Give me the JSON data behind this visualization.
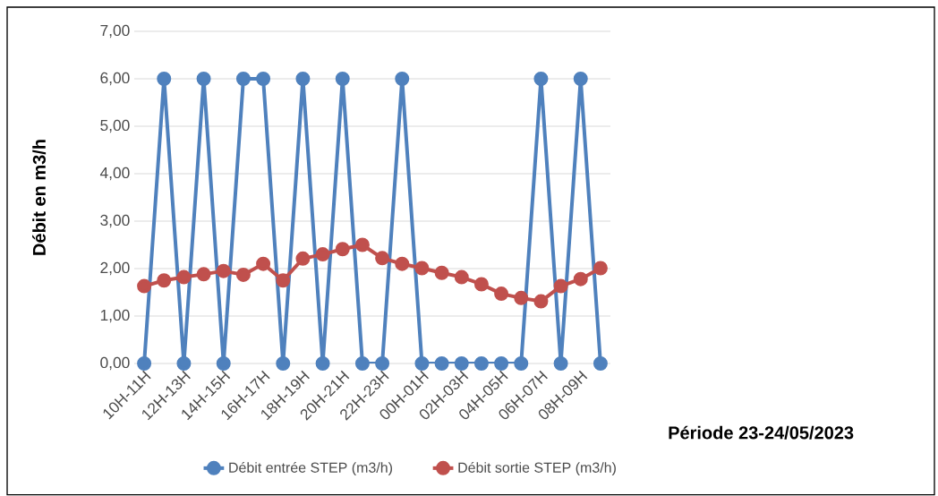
{
  "chart_data": {
    "type": "line",
    "xlabel": "Période 23-24/05/2023",
    "ylabel": "Débit en m3/h",
    "categories": [
      "10H-11H",
      null,
      "12H-13H",
      null,
      "14H-15H",
      null,
      "16H-17H",
      null,
      "18H-19H",
      null,
      "20H-21H",
      null,
      "22H-23H",
      null,
      "00H-01H",
      null,
      "02H-03H",
      null,
      "04H-05H",
      null,
      "06H-07H",
      null,
      "08H-09H",
      null
    ],
    "series": [
      {
        "name": "Débit entrée STEP (m3/h)",
        "color": "#4f81bd",
        "values": [
          0,
          6,
          0,
          6,
          0,
          6,
          6,
          0,
          6,
          0,
          6,
          0,
          0,
          6,
          0,
          0,
          0,
          0,
          0,
          0,
          6,
          0,
          6,
          0
        ]
      },
      {
        "name": "Débit sortie STEP (m3/h)",
        "color": "#c0504d",
        "values": [
          1.63,
          1.75,
          1.82,
          1.88,
          1.95,
          1.87,
          2.1,
          1.75,
          2.21,
          2.3,
          2.41,
          2.5,
          2.22,
          2.1,
          2.01,
          1.91,
          1.82,
          1.67,
          1.47,
          1.38,
          1.31,
          1.63,
          1.78,
          2.01
        ]
      }
    ],
    "ylim": [
      0,
      7
    ],
    "yticks": [
      {
        "value": 0,
        "label": "0,00"
      },
      {
        "value": 1,
        "label": "1,00"
      },
      {
        "value": 2,
        "label": "2,00"
      },
      {
        "value": 3,
        "label": "3,00"
      },
      {
        "value": 4,
        "label": "4,00"
      },
      {
        "value": 5,
        "label": "5,00"
      },
      {
        "value": 6,
        "label": "6,00"
      },
      {
        "value": 7,
        "label": "7,00"
      }
    ],
    "grid": "y",
    "legend": "bottom",
    "marker": "circle",
    "line_style": "solid"
  }
}
